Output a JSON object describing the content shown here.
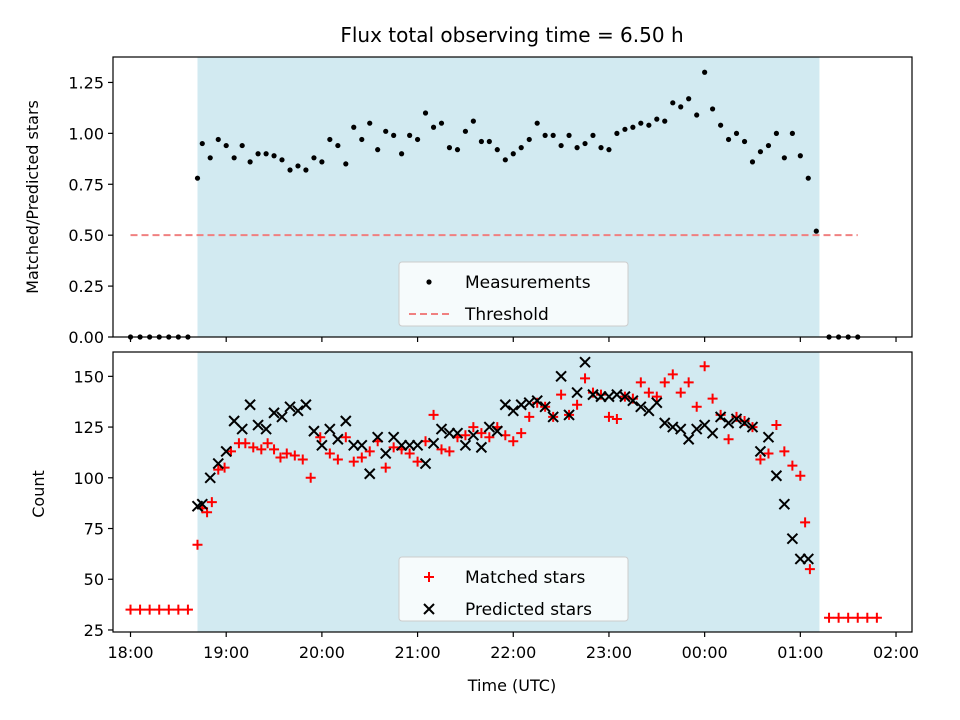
{
  "chart_data": [
    {
      "type": "scatter",
      "title": "Flux total observing time = 6.50 h",
      "ylabel": "Matched/Predicted stars",
      "ylim": [
        0.0,
        1.375
      ],
      "xlim": [
        -0.183,
        8.167
      ],
      "yticks": [
        0.0,
        0.25,
        0.5,
        0.75,
        1.0,
        1.25
      ],
      "ytick_labels": [
        "0.00",
        "0.25",
        "0.50",
        "0.75",
        "1.00",
        "1.25"
      ],
      "shaded_span": [
        0.7,
        7.2
      ],
      "threshold": {
        "value": 0.5,
        "x_range": [
          0.0,
          7.6
        ],
        "color": "#f08080"
      },
      "legend": {
        "position": "lower-center",
        "entries": [
          "Measurements",
          "Threshold"
        ]
      },
      "series": [
        {
          "name": "Measurements",
          "marker": "dot",
          "color": "#000000",
          "x": [
            0.0,
            0.1,
            0.2,
            0.3,
            0.4,
            0.5,
            0.6,
            0.7,
            0.75,
            0.833,
            0.917,
            1.0,
            1.083,
            1.167,
            1.25,
            1.333,
            1.417,
            1.5,
            1.583,
            1.667,
            1.75,
            1.833,
            1.917,
            2.0,
            2.083,
            2.167,
            2.25,
            2.333,
            2.417,
            2.5,
            2.583,
            2.667,
            2.75,
            2.833,
            2.917,
            3.0,
            3.083,
            3.167,
            3.25,
            3.333,
            3.417,
            3.5,
            3.583,
            3.667,
            3.75,
            3.833,
            3.917,
            4.0,
            4.083,
            4.167,
            4.25,
            4.333,
            4.417,
            4.5,
            4.583,
            4.667,
            4.75,
            4.833,
            4.917,
            5.0,
            5.083,
            5.167,
            5.25,
            5.333,
            5.417,
            5.5,
            5.583,
            5.667,
            5.75,
            5.833,
            5.917,
            6.0,
            6.083,
            6.167,
            6.25,
            6.333,
            6.417,
            6.5,
            6.583,
            6.667,
            6.75,
            6.833,
            6.917,
            7.0,
            7.083,
            7.167,
            7.3,
            7.4,
            7.5,
            7.6
          ],
          "y": [
            0.0,
            0.0,
            0.0,
            0.0,
            0.0,
            0.0,
            0.0,
            0.78,
            0.95,
            0.88,
            0.97,
            0.94,
            0.88,
            0.94,
            0.86,
            0.9,
            0.9,
            0.89,
            0.87,
            0.82,
            0.84,
            0.82,
            0.88,
            0.86,
            0.97,
            0.94,
            0.85,
            1.03,
            0.97,
            1.05,
            0.92,
            1.01,
            0.99,
            0.9,
            0.99,
            0.97,
            1.1,
            1.03,
            1.05,
            0.93,
            0.92,
            1.01,
            1.06,
            0.96,
            0.96,
            0.92,
            0.87,
            0.9,
            0.93,
            0.97,
            1.05,
            0.99,
            0.99,
            0.94,
            0.99,
            0.93,
            0.95,
            0.99,
            0.93,
            0.92,
            1.0,
            1.02,
            1.03,
            1.05,
            1.04,
            1.07,
            1.06,
            1.15,
            1.13,
            1.17,
            1.09,
            1.3,
            1.12,
            1.04,
            0.97,
            1.0,
            0.96,
            0.86,
            0.91,
            0.94,
            1.0,
            0.88,
            1.0,
            0.89,
            0.78,
            0.52,
            0.0,
            0.0,
            0.0,
            0.0
          ]
        }
      ]
    },
    {
      "type": "scatter",
      "xlabel": "Time (UTC)",
      "ylabel": "Count",
      "ylim": [
        24,
        162
      ],
      "xlim": [
        -0.183,
        8.167
      ],
      "yticks": [
        25,
        50,
        75,
        100,
        125,
        150
      ],
      "ytick_labels": [
        "25",
        "50",
        "75",
        "100",
        "125",
        "150"
      ],
      "xticks": [
        0,
        1,
        2,
        3,
        4,
        5,
        6,
        7,
        8
      ],
      "xtick_labels": [
        "18:00",
        "19:00",
        "20:00",
        "21:00",
        "22:00",
        "23:00",
        "00:00",
        "01:00",
        "02:00"
      ],
      "shaded_span": [
        0.7,
        7.2
      ],
      "legend": {
        "position": "lower-center",
        "entries": [
          "Matched stars",
          "Predicted stars"
        ]
      },
      "series": [
        {
          "name": "Matched stars",
          "marker": "plus",
          "color": "#ff0000",
          "x": [
            0.0,
            0.1,
            0.2,
            0.3,
            0.4,
            0.5,
            0.6,
            0.7,
            0.75,
            0.8,
            0.85,
            0.917,
            0.983,
            1.05,
            1.133,
            1.2,
            1.283,
            1.367,
            1.433,
            1.5,
            1.567,
            1.633,
            1.717,
            1.8,
            1.883,
            1.983,
            2.083,
            2.167,
            2.25,
            2.333,
            2.417,
            2.5,
            2.583,
            2.667,
            2.75,
            2.833,
            2.917,
            3.0,
            3.083,
            3.167,
            3.25,
            3.333,
            3.417,
            3.5,
            3.583,
            3.667,
            3.75,
            3.833,
            3.917,
            4.0,
            4.083,
            4.167,
            4.25,
            4.333,
            4.417,
            4.5,
            4.583,
            4.667,
            4.75,
            4.833,
            4.917,
            5.0,
            5.083,
            5.167,
            5.25,
            5.333,
            5.417,
            5.5,
            5.583,
            5.667,
            5.75,
            5.833,
            5.917,
            6.0,
            6.083,
            6.167,
            6.25,
            6.333,
            6.417,
            6.5,
            6.583,
            6.667,
            6.75,
            6.833,
            6.917,
            7.0,
            7.05,
            7.1,
            7.3,
            7.4,
            7.5,
            7.6,
            7.7,
            7.8
          ],
          "y": [
            35,
            35,
            35,
            35,
            35,
            35,
            35,
            67,
            85,
            83,
            88,
            104,
            105,
            113,
            117,
            117,
            115,
            114,
            117,
            114,
            110,
            112,
            111,
            109,
            100,
            120,
            112,
            109,
            120,
            108,
            110,
            113,
            118,
            105,
            115,
            114,
            112,
            108,
            118,
            131,
            114,
            113,
            120,
            121,
            125,
            122,
            120,
            125,
            121,
            118,
            122,
            130,
            137,
            135,
            130,
            141,
            131,
            136,
            149,
            142,
            141,
            130,
            129,
            140,
            139,
            147,
            142,
            140,
            147,
            151,
            142,
            147,
            135,
            155,
            139,
            131,
            119,
            130,
            128,
            125,
            109,
            112,
            126,
            113,
            106,
            101,
            78,
            55,
            31,
            31,
            31,
            31,
            31,
            31
          ]
        },
        {
          "name": "Predicted stars",
          "marker": "x",
          "color": "#000000",
          "x": [
            0.7,
            0.75,
            0.833,
            0.917,
            1.0,
            1.083,
            1.167,
            1.25,
            1.333,
            1.417,
            1.5,
            1.583,
            1.667,
            1.75,
            1.833,
            1.917,
            2.0,
            2.083,
            2.167,
            2.25,
            2.333,
            2.417,
            2.5,
            2.583,
            2.667,
            2.75,
            2.833,
            2.917,
            3.0,
            3.083,
            3.167,
            3.25,
            3.333,
            3.417,
            3.5,
            3.583,
            3.667,
            3.75,
            3.833,
            3.917,
            4.0,
            4.083,
            4.167,
            4.25,
            4.333,
            4.417,
            4.5,
            4.583,
            4.667,
            4.75,
            4.833,
            4.917,
            5.0,
            5.083,
            5.167,
            5.25,
            5.333,
            5.417,
            5.5,
            5.583,
            5.667,
            5.75,
            5.833,
            5.917,
            6.0,
            6.083,
            6.167,
            6.25,
            6.333,
            6.417,
            6.5,
            6.583,
            6.667,
            6.75,
            6.833,
            6.917,
            7.0,
            7.083
          ],
          "y": [
            86,
            87,
            100,
            107,
            113,
            128,
            124,
            136,
            126,
            124,
            132,
            130,
            135,
            133,
            136,
            123,
            116,
            124,
            119,
            128,
            116,
            116,
            102,
            120,
            112,
            120,
            116,
            116,
            116,
            107,
            117,
            124,
            122,
            122,
            116,
            121,
            115,
            125,
            123,
            136,
            133,
            136,
            137,
            138,
            135,
            130,
            150,
            131,
            142,
            157,
            141,
            140,
            140,
            141,
            140,
            138,
            135,
            133,
            137,
            127,
            125,
            124,
            119,
            124,
            126,
            122,
            130,
            127,
            129,
            127,
            125,
            113,
            120,
            101,
            87,
            70,
            60,
            60
          ]
        }
      ]
    }
  ]
}
